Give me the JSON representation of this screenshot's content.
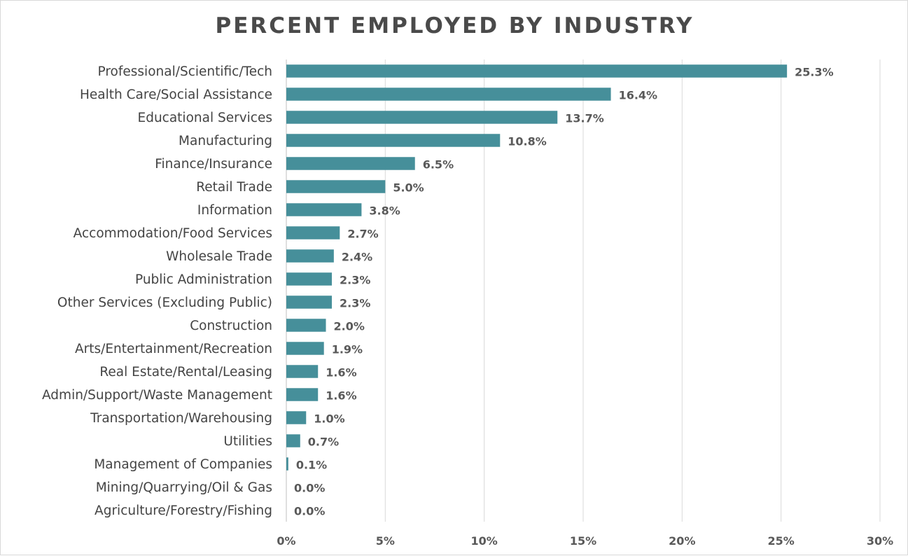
{
  "chart_data": {
    "type": "bar",
    "orientation": "horizontal",
    "title": "PERCENT EMPLOYED BY INDUSTRY",
    "xlabel": "",
    "ylabel": "",
    "xlim": [
      0,
      30
    ],
    "x_ticks": [
      0,
      5,
      10,
      15,
      20,
      25,
      30
    ],
    "x_tick_labels": [
      "0%",
      "5%",
      "10%",
      "15%",
      "20%",
      "25%",
      "30%"
    ],
    "grid": true,
    "bar_color": "#468f9a",
    "categories": [
      "Professional/Scientific/Tech",
      "Health Care/Social Assistance",
      "Educational Services",
      "Manufacturing",
      "Finance/Insurance",
      "Retail Trade",
      "Information",
      "Accommodation/Food Services",
      "Wholesale Trade",
      "Public Administration",
      "Other Services (Excluding Public)",
      "Construction",
      "Arts/Entertainment/Recreation",
      "Real Estate/Rental/Leasing",
      "Admin/Support/Waste Management",
      "Transportation/Warehousing",
      "Utilities",
      "Management of Companies",
      "Mining/Quarrying/Oil & Gas",
      "Agriculture/Forestry/Fishing"
    ],
    "values": [
      25.3,
      16.4,
      13.7,
      10.8,
      6.5,
      5.0,
      3.8,
      2.7,
      2.4,
      2.3,
      2.3,
      2.0,
      1.9,
      1.6,
      1.6,
      1.0,
      0.7,
      0.1,
      0.0,
      0.0
    ],
    "data_labels": [
      "25.3%",
      "16.4%",
      "13.7%",
      "10.8%",
      "6.5%",
      "5.0%",
      "3.8%",
      "2.7%",
      "2.4%",
      "2.3%",
      "2.3%",
      "2.0%",
      "1.9%",
      "1.6%",
      "1.6%",
      "1.0%",
      "0.7%",
      "0.1%",
      "0.0%",
      "0.0%"
    ]
  }
}
